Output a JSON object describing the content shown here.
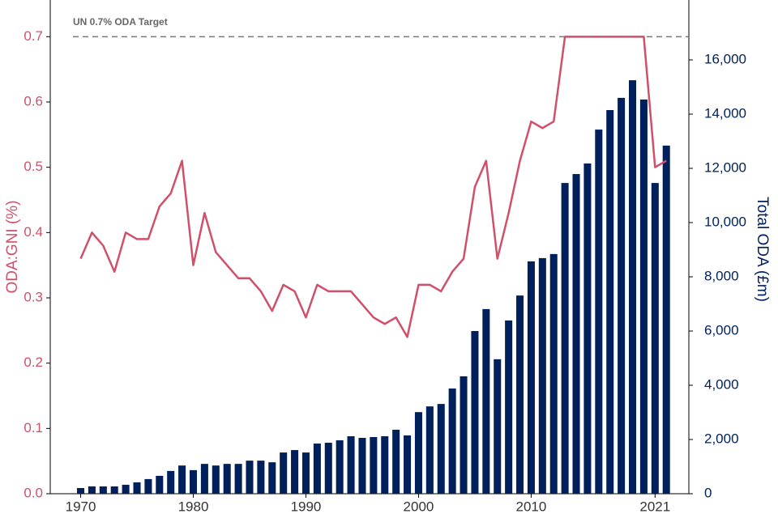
{
  "chart_data": {
    "type": "bar-line",
    "ylabel": "ODA:GNI (%)",
    "y2label": "Total ODA (£m)",
    "target": {
      "value": 0.7,
      "label": "UN 0.7% ODA Target"
    },
    "x": [
      1970,
      1971,
      1972,
      1973,
      1974,
      1975,
      1976,
      1977,
      1978,
      1979,
      1980,
      1981,
      1982,
      1983,
      1984,
      1985,
      1986,
      1987,
      1988,
      1989,
      1990,
      1991,
      1992,
      1993,
      1994,
      1995,
      1996,
      1997,
      1998,
      1999,
      2000,
      2001,
      2002,
      2003,
      2004,
      2005,
      2006,
      2007,
      2008,
      2009,
      2010,
      2011,
      2012,
      2013,
      2014,
      2015,
      2016,
      2017,
      2018,
      2019,
      2020,
      2021,
      2022
    ],
    "xlim": [
      1967.3,
      2024
    ],
    "xticks": [
      1970,
      1980,
      1990,
      2000,
      2010,
      2021
    ],
    "ylim": [
      0,
      0.75
    ],
    "yticks": [
      {
        "value": 0,
        "label": "0.0"
      },
      0.1,
      0.2,
      0.3,
      0.4,
      0.5,
      0.6,
      0.7
    ],
    "y2lim": [
      0,
      18060
    ],
    "y2ticks": [
      0,
      {
        "value": 2000,
        "label": "2,000"
      },
      {
        "value": 4000,
        "label": "4,000"
      },
      {
        "value": 6000,
        "label": "6,000"
      },
      {
        "value": 8000,
        "label": "8,000"
      },
      {
        "value": 10000,
        "label": "10,000"
      },
      {
        "value": 12000,
        "label": "12,000"
      },
      {
        "value": 14000,
        "label": "14,000"
      },
      {
        "value": 16000,
        "label": "16,000"
      }
    ],
    "series": [
      {
        "type": "bar",
        "axis": "y2",
        "color": "#00205b",
        "values": [
          210,
          270,
          270,
          270,
          330,
          420,
          540,
          660,
          840,
          1040,
          870,
          1100,
          1040,
          1100,
          1100,
          1220,
          1220,
          1160,
          1520,
          1610,
          1520,
          1850,
          1880,
          1970,
          2120,
          2060,
          2090,
          2120,
          2360,
          2150,
          3010,
          3220,
          3310,
          3880,
          4330,
          6000,
          6810,
          4960,
          6390,
          7310,
          8570,
          8690,
          8840,
          11460,
          11790,
          12180,
          13430,
          14150,
          14600,
          15250,
          14540,
          11460,
          12840
        ]
      },
      {
        "type": "line",
        "axis": "y",
        "color": "#d0506a",
        "values": [
          0.36,
          0.4,
          0.38,
          0.34,
          0.4,
          0.39,
          0.39,
          0.44,
          0.46,
          0.51,
          0.35,
          0.43,
          0.37,
          0.35,
          0.33,
          0.33,
          0.31,
          0.28,
          0.32,
          0.31,
          0.27,
          0.32,
          0.31,
          0.31,
          0.31,
          0.29,
          0.27,
          0.26,
          0.27,
          0.24,
          0.32,
          0.32,
          0.31,
          0.34,
          0.36,
          0.47,
          0.51,
          0.36,
          0.43,
          0.51,
          0.57,
          0.56,
          0.57,
          0.7,
          0.7,
          0.7,
          0.7,
          0.7,
          0.7,
          0.7,
          0.7,
          0.5,
          0.51
        ]
      }
    ]
  }
}
